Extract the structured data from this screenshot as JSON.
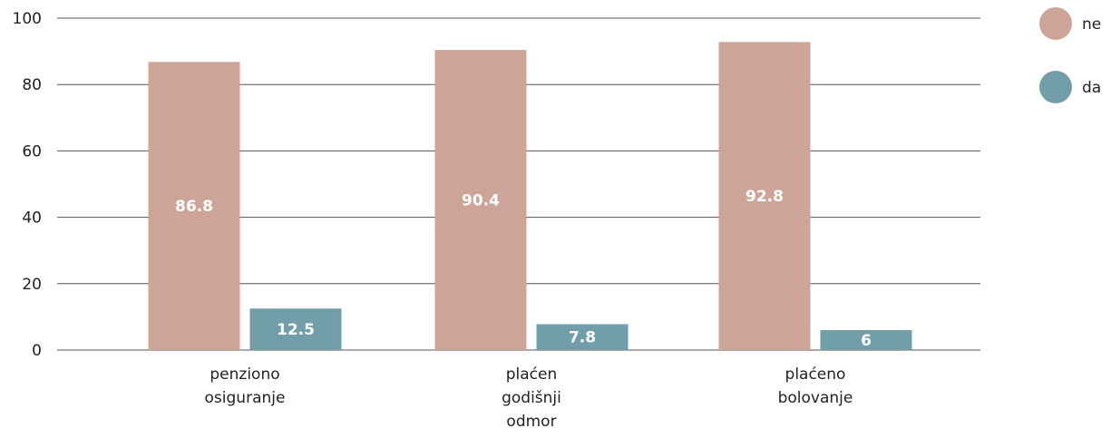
{
  "chart_data": {
    "type": "bar",
    "title": "",
    "xlabel": "",
    "ylabel": "",
    "ylim": [
      0,
      100
    ],
    "yticks": [
      0,
      20,
      40,
      60,
      80,
      100
    ],
    "categories": [
      [
        "penziono",
        "osiguranje"
      ],
      [
        "plaćen",
        "godišnji",
        "odmor"
      ],
      [
        "plaćeno",
        "bolovanje"
      ]
    ],
    "series": [
      {
        "name": "ne",
        "color": "#cda598",
        "values": [
          86.8,
          90.4,
          92.8
        ],
        "labels": [
          "86.8",
          "90.4",
          "92.8"
        ]
      },
      {
        "name": "da",
        "color": "#729ea9",
        "values": [
          12.5,
          7.8,
          6
        ],
        "labels": [
          "12.5",
          "7.8",
          "6"
        ]
      }
    ],
    "grid": true,
    "legend": "top-right"
  }
}
